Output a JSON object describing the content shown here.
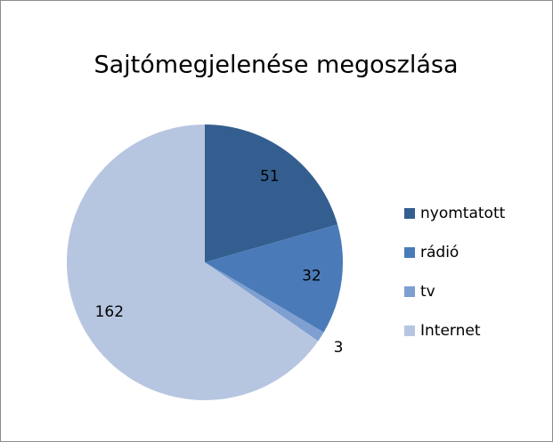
{
  "chart_data": {
    "type": "pie",
    "title": "Sajtómegjelenése megoszlása",
    "categories": [
      "nyomtatott",
      "rádió",
      "tv",
      "Internet"
    ],
    "values": [
      51,
      32,
      3,
      162
    ],
    "colors": [
      "#345e8f",
      "#4a7bb8",
      "#7f9fd1",
      "#b7c6e0"
    ],
    "legend": "right"
  }
}
